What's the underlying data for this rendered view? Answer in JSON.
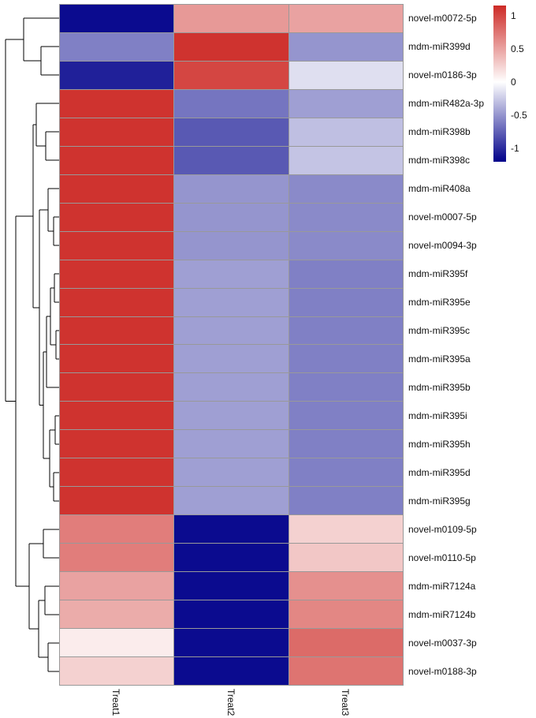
{
  "figure": {
    "background": "#ffffff",
    "description": "Hierarchically clustered heatmap of miRNA expression across three treatments"
  },
  "chart_data": {
    "type": "heatmap",
    "columns": [
      "Treat1",
      "Treat2",
      "Treat3"
    ],
    "rows": [
      "novel-m0072-5p",
      "mdm-miR399d",
      "novel-m0186-3p",
      "mdm-miR482a-3p",
      "mdm-miR398b",
      "mdm-miR398c",
      "mdm-miR408a",
      "novel-m0007-5p",
      "novel-m0094-3p",
      "mdm-miR395f",
      "mdm-miR395e",
      "mdm-miR395c",
      "mdm-miR395a",
      "mdm-miR395b",
      "mdm-miR395i",
      "mdm-miR395h",
      "mdm-miR395d",
      "mdm-miR395g",
      "novel-m0109-5p",
      "novel-m0110-5p",
      "mdm-miR7124a",
      "mdm-miR7124b",
      "novel-m0037-3p",
      "novel-m0188-3p"
    ],
    "values": [
      [
        -1.15,
        0.55,
        0.5
      ],
      [
        -0.6,
        1.1,
        -0.5
      ],
      [
        -1.05,
        1.0,
        -0.15
      ],
      [
        1.1,
        -0.65,
        -0.45
      ],
      [
        1.1,
        -0.78,
        -0.3
      ],
      [
        1.1,
        -0.78,
        -0.28
      ],
      [
        1.1,
        -0.5,
        -0.55
      ],
      [
        1.1,
        -0.5,
        -0.55
      ],
      [
        1.1,
        -0.5,
        -0.55
      ],
      [
        1.1,
        -0.45,
        -0.6
      ],
      [
        1.1,
        -0.45,
        -0.6
      ],
      [
        1.1,
        -0.45,
        -0.6
      ],
      [
        1.1,
        -0.45,
        -0.6
      ],
      [
        1.1,
        -0.45,
        -0.6
      ],
      [
        1.1,
        -0.45,
        -0.6
      ],
      [
        1.1,
        -0.45,
        -0.6
      ],
      [
        1.1,
        -0.45,
        -0.6
      ],
      [
        1.1,
        -0.45,
        -0.6
      ],
      [
        0.7,
        -1.15,
        0.25
      ],
      [
        0.7,
        -1.15,
        0.3
      ],
      [
        0.5,
        -1.15,
        0.6
      ],
      [
        0.45,
        -1.15,
        0.65
      ],
      [
        0.1,
        -1.15,
        0.8
      ],
      [
        0.25,
        -1.15,
        0.75
      ]
    ],
    "color_scale": {
      "min": -1.2,
      "max": 1.15,
      "min_color": "#00008a",
      "mid_color": "#ffffff",
      "max_color": "#cd2a26",
      "legend_ticks": [
        "1",
        "0.5",
        "0",
        "-0.5",
        "-1"
      ],
      "legend_tick_values": [
        1,
        0.5,
        0,
        -0.5,
        -1
      ],
      "legend_position": "right"
    },
    "grid": true,
    "cell_border_color": "#999999",
    "row_dendrogram": {
      "side": "left",
      "merges": [
        [
          "L1",
          "L2",
          52
        ],
        [
          "L0",
          "M0",
          30
        ],
        [
          "L4",
          "L5",
          58
        ],
        [
          "L3",
          "M2",
          46
        ],
        [
          "L7",
          "L8",
          68
        ],
        [
          "L6",
          "M4",
          61
        ],
        [
          "L9",
          "L10",
          69
        ],
        [
          "L11",
          "L12",
          71
        ],
        [
          "M6",
          "M7",
          64
        ],
        [
          "M8",
          "L13",
          59
        ],
        [
          "L14",
          "L15",
          70
        ],
        [
          "L16",
          "L17",
          68
        ],
        [
          "M10",
          "M11",
          63
        ],
        [
          "M9",
          "M12",
          55
        ],
        [
          "M5",
          "M13",
          50
        ],
        [
          "M3",
          "M14",
          42
        ],
        [
          "L18",
          "L19",
          55
        ],
        [
          "L20",
          "L21",
          57
        ],
        [
          "L22",
          "L23",
          61
        ],
        [
          "M17",
          "M18",
          49
        ],
        [
          "M16",
          "M19",
          37
        ],
        [
          "M15",
          "M20",
          20
        ],
        [
          "M1",
          "M21",
          7
        ]
      ]
    }
  }
}
